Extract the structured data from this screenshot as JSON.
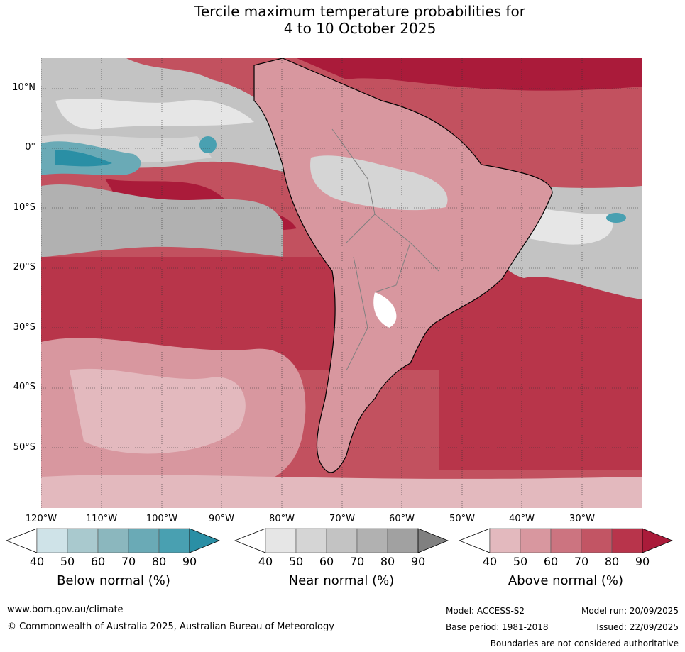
{
  "title": {
    "line1": "Tercile maximum temperature probabilities for",
    "line2": "4 to 10 October 2025"
  },
  "map": {
    "lat_labels": [
      "10°N",
      "0°",
      "10°S",
      "20°S",
      "30°S",
      "40°S",
      "50°S"
    ],
    "lon_labels": [
      "120°W",
      "110°W",
      "100°W",
      "90°W",
      "80°W",
      "70°W",
      "60°W",
      "50°W",
      "40°W",
      "30°W"
    ],
    "colors": {
      "above": [
        "#e8bfc4",
        "#dc9aa2",
        "#cd6e79",
        "#c2515f",
        "#b8354a",
        "#a81a3a"
      ],
      "near": [
        "#e6e6e6",
        "#d5d5d5",
        "#c3c3c3",
        "#b1b1b1",
        "#a1a1a1",
        "#808080"
      ],
      "below": [
        "#cfe3e8",
        "#a9c9ce",
        "#8bb7be",
        "#6aaab6",
        "#49a0b1",
        "#2a8fa5"
      ]
    }
  },
  "colorbars": [
    {
      "id": "below",
      "title": "Below normal (%)",
      "ticks": [
        "40",
        "50",
        "60",
        "70",
        "80",
        "90"
      ],
      "colors": [
        "#cfe3e8",
        "#a9c9ce",
        "#8bb7be",
        "#6aaab6",
        "#49a0b1",
        "#2a8fa5"
      ]
    },
    {
      "id": "near",
      "title": "Near normal (%)",
      "ticks": [
        "40",
        "50",
        "60",
        "70",
        "80",
        "90"
      ],
      "colors": [
        "#e6e6e6",
        "#d5d5d5",
        "#c3c3c3",
        "#b1b1b1",
        "#a1a1a1",
        "#808080"
      ]
    },
    {
      "id": "above",
      "title": "Above normal (%)",
      "ticks": [
        "40",
        "50",
        "60",
        "70",
        "80",
        "90"
      ],
      "colors": [
        "#e3b9be",
        "#d8979f",
        "#cc7480",
        "#c25564",
        "#b8344b",
        "#aa1b3a"
      ]
    }
  ],
  "footer": {
    "website": "www.bom.gov.au/climate",
    "copyright": "© Commonwealth of Australia 2025, Australian Bureau of Meteorology",
    "model": "Model: ACCESS-S2",
    "base_period": "Base period: 1981-2018",
    "model_run": "Model run: 20/09/2025",
    "issued": "Issued: 22/09/2025",
    "disclaimer": "Boundaries are not considered authoritative"
  }
}
